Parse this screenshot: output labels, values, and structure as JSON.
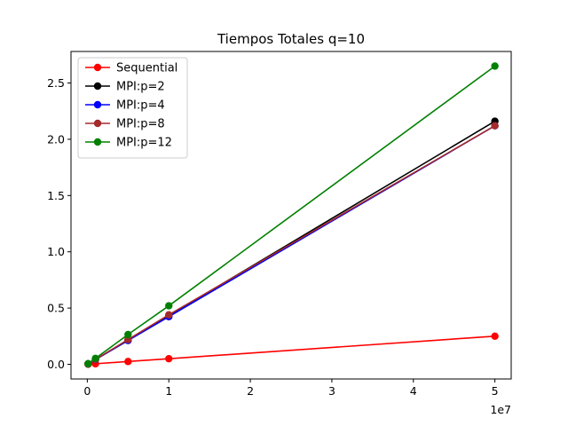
{
  "chart_data": {
    "type": "line",
    "title": "Tiempos Totales q=10",
    "xlabel": "",
    "ylabel": "",
    "x_offset_text": "1e7",
    "x_scale": 10000000,
    "x": [
      100000,
      1000000,
      5000000,
      10000000,
      50000000
    ],
    "xlim": [
      -2000000,
      52000000
    ],
    "ylim": [
      -0.13,
      2.78
    ],
    "x_ticks": [
      0,
      10000000,
      20000000,
      30000000,
      40000000,
      50000000
    ],
    "x_tick_labels": [
      "0",
      "1",
      "2",
      "3",
      "4",
      "5"
    ],
    "y_ticks": [
      0.0,
      0.5,
      1.0,
      1.5,
      2.0,
      2.5
    ],
    "y_tick_labels": [
      "0.0",
      "0.5",
      "1.0",
      "1.5",
      "2.0",
      "2.5"
    ],
    "grid": false,
    "legend_position": "upper left",
    "series": [
      {
        "name": "Sequential",
        "color": "#ff0000",
        "values": [
          0.0005,
          0.005,
          0.025,
          0.05,
          0.25
        ]
      },
      {
        "name": "MPI:p=2",
        "color": "#000000",
        "values": [
          0.004,
          0.043,
          0.215,
          0.432,
          2.16
        ]
      },
      {
        "name": "MPI:p=4",
        "color": "#0000ff",
        "values": [
          0.004,
          0.042,
          0.212,
          0.424,
          2.12
        ]
      },
      {
        "name": "MPI:p=8",
        "color": "#a52a2a",
        "values": [
          0.004,
          0.044,
          0.22,
          0.44,
          2.12
        ]
      },
      {
        "name": "MPI:p=12",
        "color": "#008000",
        "values": [
          0.005,
          0.053,
          0.265,
          0.52,
          2.65
        ]
      }
    ]
  }
}
